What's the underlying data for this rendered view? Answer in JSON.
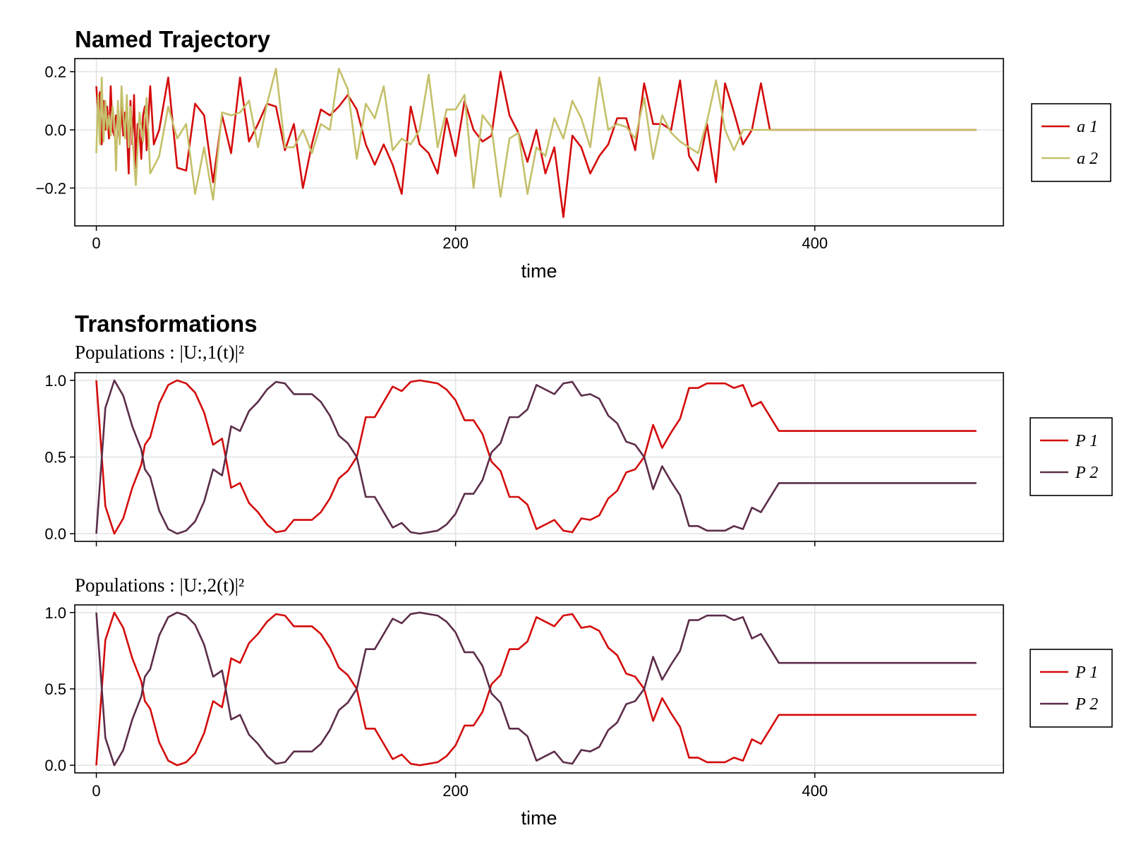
{
  "colors": {
    "red": "#d40b0b",
    "olive": "#c4c06a",
    "purple": "#5c2d4a",
    "grid": "#e2e2e2"
  },
  "chart_data": [
    {
      "id": "trajectory",
      "type": "line",
      "title": "Named Trajectory",
      "subtitle": "",
      "xlabel": "time",
      "ylabel": "",
      "xlim": [
        -12,
        505
      ],
      "ylim": [
        -0.33,
        0.245
      ],
      "xticks": [
        0,
        200,
        400
      ],
      "xtick_labels": [
        "0",
        "200",
        "400"
      ],
      "yticks": [
        0.2,
        0.0,
        -0.2
      ],
      "ytick_labels": [
        "0.2",
        "0.0",
        "−0.2"
      ],
      "legend_position": "right",
      "series": [
        {
          "name": "a 1",
          "color": "red",
          "x": [
            0,
            1,
            2,
            3,
            4,
            5,
            6,
            7,
            8,
            9,
            10,
            11,
            12,
            13,
            14,
            15,
            16,
            17,
            18,
            19,
            20,
            21,
            22,
            23,
            24,
            25,
            26,
            27,
            28,
            30,
            32,
            35,
            40,
            45,
            50,
            55,
            60,
            65,
            70,
            75,
            80,
            85,
            90,
            95,
            100,
            105,
            110,
            115,
            120,
            125,
            130,
            135,
            140,
            145,
            150,
            155,
            160,
            165,
            170,
            175,
            180,
            185,
            190,
            195,
            200,
            205,
            210,
            215,
            220,
            225,
            230,
            235,
            240,
            245,
            250,
            255,
            260,
            265,
            270,
            275,
            280,
            285,
            290,
            295,
            300,
            305,
            310,
            315,
            320,
            325,
            330,
            335,
            340,
            345,
            350,
            355,
            360,
            365,
            370,
            375,
            380,
            385,
            390,
            395,
            400,
            410,
            420,
            430,
            440,
            450,
            460,
            470,
            480,
            490
          ],
          "y": [
            0.15,
            0.05,
            0.13,
            -0.05,
            0.1,
            0.0,
            0.08,
            -0.03,
            0.15,
            0.0,
            -0.02,
            0.05,
            0.02,
            -0.04,
            0.08,
            -0.02,
            0.06,
            0.0,
            -0.15,
            0.1,
            -0.05,
            0.12,
            -0.13,
            0.02,
            0.0,
            -0.1,
            0.05,
            0.08,
            -0.07,
            0.15,
            -0.05,
            0.0,
            0.18,
            -0.13,
            -0.14,
            0.09,
            0.05,
            -0.18,
            0.05,
            -0.08,
            0.18,
            -0.04,
            0.02,
            0.09,
            0.08,
            -0.07,
            0.02,
            -0.2,
            -0.05,
            0.07,
            0.05,
            0.08,
            0.12,
            0.07,
            -0.05,
            -0.12,
            -0.05,
            -0.12,
            -0.22,
            0.08,
            -0.05,
            -0.08,
            -0.15,
            0.04,
            -0.09,
            0.1,
            0.0,
            -0.04,
            -0.02,
            0.2,
            0.05,
            -0.01,
            -0.11,
            0.0,
            -0.15,
            -0.06,
            -0.3,
            -0.02,
            -0.06,
            -0.15,
            -0.09,
            -0.05,
            0.04,
            0.04,
            -0.07,
            0.16,
            0.02,
            0.02,
            0.0,
            0.17,
            -0.09,
            -0.14,
            0.02,
            -0.18,
            0.16,
            0.06,
            -0.05,
            0.0,
            0.16,
            0.0,
            0.0,
            0.0,
            0.0,
            0.0,
            0.0,
            0.0,
            0.0,
            0.0,
            0.0,
            0.0,
            0.0,
            0.0,
            0.0,
            0.0
          ]
        },
        {
          "name": "a 2",
          "color": "olive",
          "x": [
            0,
            1,
            2,
            3,
            4,
            5,
            6,
            7,
            8,
            9,
            10,
            11,
            12,
            13,
            14,
            15,
            16,
            17,
            18,
            19,
            20,
            22,
            24,
            26,
            28,
            30,
            35,
            40,
            45,
            50,
            55,
            60,
            65,
            70,
            75,
            80,
            85,
            90,
            95,
            100,
            105,
            110,
            115,
            120,
            125,
            130,
            135,
            140,
            145,
            150,
            155,
            160,
            165,
            170,
            175,
            180,
            185,
            190,
            195,
            200,
            205,
            210,
            215,
            220,
            225,
            230,
            235,
            240,
            245,
            250,
            255,
            260,
            265,
            270,
            275,
            280,
            285,
            290,
            295,
            300,
            305,
            310,
            315,
            320,
            325,
            330,
            335,
            340,
            345,
            350,
            355,
            360,
            365,
            370,
            375,
            380,
            385,
            390,
            395,
            400,
            410,
            420,
            430,
            440,
            450,
            460,
            470,
            480,
            490
          ],
          "y": [
            -0.08,
            0.12,
            -0.05,
            0.18,
            -0.04,
            0.1,
            0.0,
            0.05,
            -0.02,
            0.08,
            0.03,
            -0.14,
            0.1,
            -0.05,
            0.15,
            0.05,
            -0.03,
            0.12,
            -0.06,
            0.08,
            -0.02,
            -0.19,
            0.06,
            -0.04,
            0.11,
            -0.15,
            -0.09,
            0.08,
            -0.03,
            0.02,
            -0.22,
            -0.06,
            -0.24,
            0.06,
            0.05,
            0.06,
            0.1,
            -0.06,
            0.09,
            0.21,
            -0.06,
            -0.06,
            0.0,
            -0.08,
            0.02,
            0.0,
            0.21,
            0.14,
            -0.1,
            0.09,
            0.04,
            0.15,
            -0.07,
            -0.03,
            -0.05,
            0.0,
            0.19,
            -0.06,
            0.07,
            0.07,
            0.12,
            -0.2,
            0.05,
            0.01,
            -0.23,
            -0.03,
            -0.01,
            -0.22,
            -0.06,
            -0.09,
            0.04,
            -0.03,
            0.1,
            0.04,
            -0.06,
            0.18,
            0.0,
            0.02,
            0.01,
            -0.03,
            0.11,
            -0.1,
            0.05,
            -0.01,
            -0.04,
            -0.06,
            -0.08,
            0.03,
            0.17,
            0.0,
            -0.07,
            0.0,
            0.0,
            0.0,
            0.0,
            0.0,
            0.0,
            0.0,
            0.0,
            0.0,
            0.0,
            0.0,
            0.0,
            0.0,
            0.0,
            0.0,
            0.0,
            0.0,
            0.0
          ]
        }
      ]
    },
    {
      "id": "pop1",
      "type": "line",
      "title": "Transformations",
      "subtitle": "Populations :  |U:,1(t)|²",
      "xlabel": "",
      "ylabel": "",
      "xlim": [
        -12,
        505
      ],
      "ylim": [
        -0.05,
        1.05
      ],
      "xticks": [
        0,
        200,
        400
      ],
      "xtick_labels": [],
      "yticks": [
        1.0,
        0.5,
        0.0
      ],
      "ytick_labels": [
        "1.0",
        "0.5",
        "0.0"
      ],
      "legend_position": "right",
      "series": [
        {
          "name": "P 1",
          "color": "red",
          "x": [
            0,
            5,
            10,
            15,
            20,
            25,
            27,
            30,
            35,
            40,
            45,
            50,
            55,
            60,
            65,
            70,
            72,
            75,
            80,
            85,
            90,
            95,
            100,
            105,
            110,
            115,
            120,
            125,
            130,
            135,
            140,
            145,
            150,
            155,
            160,
            165,
            170,
            175,
            180,
            185,
            190,
            195,
            200,
            205,
            210,
            215,
            220,
            225,
            230,
            235,
            240,
            245,
            250,
            255,
            260,
            265,
            270,
            275,
            280,
            285,
            290,
            295,
            300,
            305,
            310,
            315,
            320,
            325,
            330,
            335,
            340,
            345,
            350,
            355,
            360,
            365,
            370,
            380,
            390,
            400,
            410,
            420,
            430,
            440,
            450,
            460,
            470,
            480,
            490
          ],
          "y": [
            1.0,
            0.18,
            0.0,
            0.1,
            0.3,
            0.45,
            0.58,
            0.63,
            0.85,
            0.97,
            1.0,
            0.98,
            0.92,
            0.79,
            0.58,
            0.62,
            0.5,
            0.3,
            0.33,
            0.2,
            0.14,
            0.06,
            0.01,
            0.02,
            0.09,
            0.09,
            0.09,
            0.14,
            0.23,
            0.36,
            0.41,
            0.5,
            0.76,
            0.76,
            0.86,
            0.96,
            0.93,
            0.99,
            1.0,
            0.99,
            0.98,
            0.94,
            0.87,
            0.74,
            0.74,
            0.65,
            0.47,
            0.41,
            0.24,
            0.24,
            0.19,
            0.03,
            0.06,
            0.09,
            0.02,
            0.01,
            0.1,
            0.09,
            0.12,
            0.23,
            0.28,
            0.4,
            0.42,
            0.5,
            0.71,
            0.56,
            0.66,
            0.75,
            0.95,
            0.95,
            0.98,
            0.98,
            0.98,
            0.95,
            0.97,
            0.83,
            0.86,
            0.67,
            0.67,
            0.67,
            0.67,
            0.67,
            0.67,
            0.67,
            0.67,
            0.67,
            0.67,
            0.67,
            0.67
          ]
        },
        {
          "name": "P 2",
          "color": "purple",
          "x": [
            0,
            5,
            10,
            15,
            20,
            25,
            27,
            30,
            35,
            40,
            45,
            50,
            55,
            60,
            65,
            70,
            72,
            75,
            80,
            85,
            90,
            95,
            100,
            105,
            110,
            115,
            120,
            125,
            130,
            135,
            140,
            145,
            150,
            155,
            160,
            165,
            170,
            175,
            180,
            185,
            190,
            195,
            200,
            205,
            210,
            215,
            220,
            225,
            230,
            235,
            240,
            245,
            250,
            255,
            260,
            265,
            270,
            275,
            280,
            285,
            290,
            295,
            300,
            305,
            310,
            315,
            320,
            325,
            330,
            335,
            340,
            345,
            350,
            355,
            360,
            365,
            370,
            380,
            390,
            400,
            410,
            420,
            430,
            440,
            450,
            460,
            470,
            480,
            490
          ],
          "y": [
            0.0,
            0.82,
            1.0,
            0.9,
            0.7,
            0.55,
            0.42,
            0.37,
            0.15,
            0.03,
            0.0,
            0.02,
            0.08,
            0.21,
            0.42,
            0.38,
            0.5,
            0.7,
            0.67,
            0.8,
            0.86,
            0.94,
            0.99,
            0.98,
            0.91,
            0.91,
            0.91,
            0.86,
            0.77,
            0.64,
            0.59,
            0.5,
            0.24,
            0.24,
            0.14,
            0.04,
            0.07,
            0.01,
            0.0,
            0.01,
            0.02,
            0.06,
            0.13,
            0.26,
            0.26,
            0.35,
            0.53,
            0.59,
            0.76,
            0.76,
            0.81,
            0.97,
            0.94,
            0.91,
            0.98,
            0.99,
            0.9,
            0.91,
            0.88,
            0.77,
            0.72,
            0.6,
            0.58,
            0.5,
            0.29,
            0.44,
            0.34,
            0.25,
            0.05,
            0.05,
            0.02,
            0.02,
            0.02,
            0.05,
            0.03,
            0.17,
            0.14,
            0.33,
            0.33,
            0.33,
            0.33,
            0.33,
            0.33,
            0.33,
            0.33,
            0.33,
            0.33,
            0.33,
            0.33
          ]
        }
      ]
    },
    {
      "id": "pop2",
      "type": "line",
      "title": "",
      "subtitle": "Populations :  |U:,2(t)|²",
      "xlabel": "time",
      "ylabel": "",
      "xlim": [
        -12,
        505
      ],
      "ylim": [
        -0.05,
        1.05
      ],
      "xticks": [
        0,
        200,
        400
      ],
      "xtick_labels": [
        "0",
        "200",
        "400"
      ],
      "yticks": [
        1.0,
        0.5,
        0.0
      ],
      "ytick_labels": [
        "1.0",
        "0.5",
        "0.0"
      ],
      "legend_position": "right",
      "series": [
        {
          "name": "P 1",
          "color": "red",
          "mirror_of": "pop1.P 1"
        },
        {
          "name": "P 2",
          "color": "purple",
          "mirror_of": "pop1.P 2"
        }
      ]
    }
  ]
}
